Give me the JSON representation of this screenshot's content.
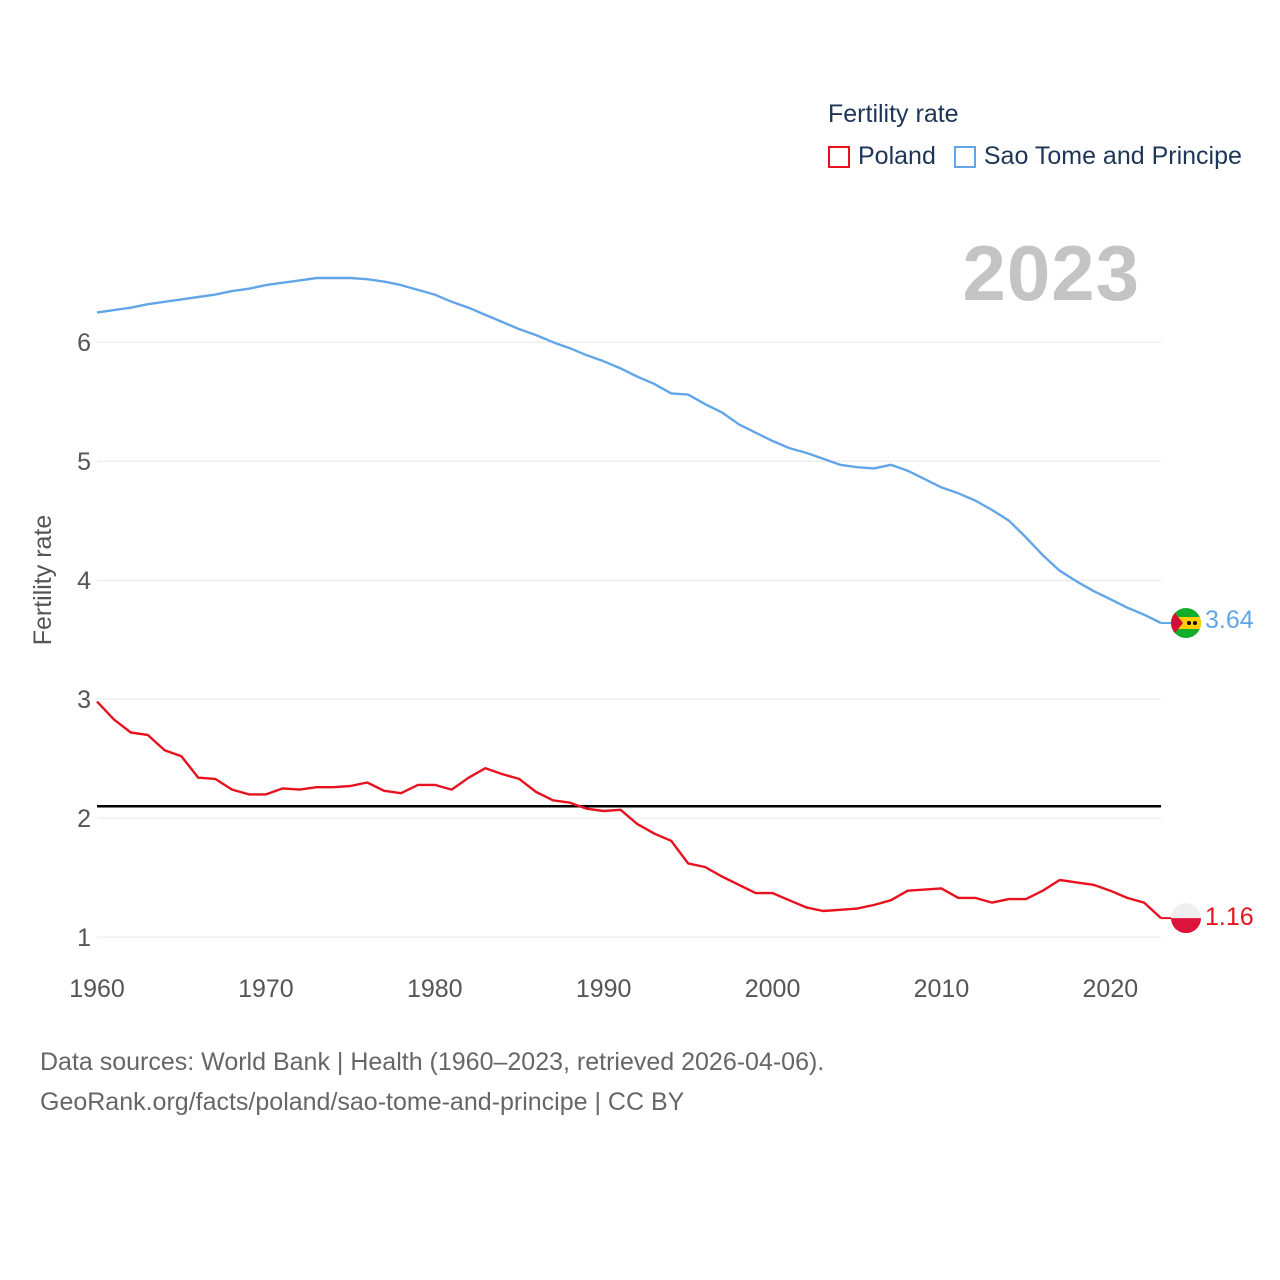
{
  "legend": {
    "title": "Fertility rate",
    "items": [
      {
        "label": "Poland",
        "color": "#e8111f"
      },
      {
        "label": "Sao Tome and Principe",
        "color": "#63a6e8"
      }
    ]
  },
  "year_label": "2023",
  "end_labels": {
    "poland": "1.16",
    "stp": "3.64"
  },
  "footer": {
    "line1": "Data sources: World Bank | Health (1960–2023, retrieved 2026-04-06).",
    "line2": "GeoRank.org/facts/poland/sao-tome-and-principe | CC BY"
  },
  "chart_data": {
    "type": "line",
    "title": "Fertility rate",
    "xlabel": "",
    "ylabel": "Fertility rate",
    "xlim": [
      1960,
      2023
    ],
    "ylim": [
      0.85,
      6.75
    ],
    "x_ticks": [
      1960,
      1970,
      1980,
      1990,
      2000,
      2010,
      2020
    ],
    "y_ticks": [
      1,
      2,
      3,
      4,
      5,
      6
    ],
    "reference_line": {
      "value": 2.1,
      "color": "#000000"
    },
    "x": [
      1960,
      1961,
      1962,
      1963,
      1964,
      1965,
      1966,
      1967,
      1968,
      1969,
      1970,
      1971,
      1972,
      1973,
      1974,
      1975,
      1976,
      1977,
      1978,
      1979,
      1980,
      1981,
      1982,
      1983,
      1984,
      1985,
      1986,
      1987,
      1988,
      1989,
      1990,
      1991,
      1992,
      1993,
      1994,
      1995,
      1996,
      1997,
      1998,
      1999,
      2000,
      2001,
      2002,
      2003,
      2004,
      2005,
      2006,
      2007,
      2008,
      2009,
      2010,
      2011,
      2012,
      2013,
      2014,
      2015,
      2016,
      2017,
      2018,
      2019,
      2020,
      2021,
      2022,
      2023
    ],
    "series": [
      {
        "name": "Poland",
        "color": "#e8111f",
        "values": [
          2.98,
          2.83,
          2.72,
          2.7,
          2.57,
          2.52,
          2.34,
          2.33,
          2.24,
          2.2,
          2.2,
          2.25,
          2.24,
          2.26,
          2.26,
          2.27,
          2.3,
          2.23,
          2.21,
          2.28,
          2.28,
          2.24,
          2.34,
          2.42,
          2.37,
          2.33,
          2.22,
          2.15,
          2.13,
          2.08,
          2.06,
          2.07,
          1.95,
          1.87,
          1.81,
          1.62,
          1.59,
          1.51,
          1.44,
          1.37,
          1.37,
          1.31,
          1.25,
          1.22,
          1.23,
          1.24,
          1.27,
          1.31,
          1.39,
          1.4,
          1.41,
          1.33,
          1.33,
          1.29,
          1.32,
          1.32,
          1.39,
          1.48,
          1.46,
          1.44,
          1.39,
          1.33,
          1.29,
          1.16
        ]
      },
      {
        "name": "Sao Tome and Principe",
        "color": "#63a6e8",
        "values": [
          6.25,
          6.27,
          6.29,
          6.32,
          6.34,
          6.36,
          6.38,
          6.4,
          6.43,
          6.45,
          6.48,
          6.5,
          6.52,
          6.54,
          6.54,
          6.54,
          6.53,
          6.51,
          6.48,
          6.44,
          6.4,
          6.34,
          6.29,
          6.23,
          6.17,
          6.11,
          6.06,
          6.0,
          5.95,
          5.89,
          5.84,
          5.78,
          5.71,
          5.65,
          5.57,
          5.56,
          5.48,
          5.41,
          5.31,
          5.24,
          5.17,
          5.11,
          5.07,
          5.02,
          4.97,
          4.95,
          4.94,
          4.97,
          4.92,
          4.85,
          4.78,
          4.73,
          4.67,
          4.59,
          4.5,
          4.36,
          4.21,
          4.08,
          3.99,
          3.91,
          3.84,
          3.77,
          3.71,
          3.64
        ]
      }
    ]
  }
}
